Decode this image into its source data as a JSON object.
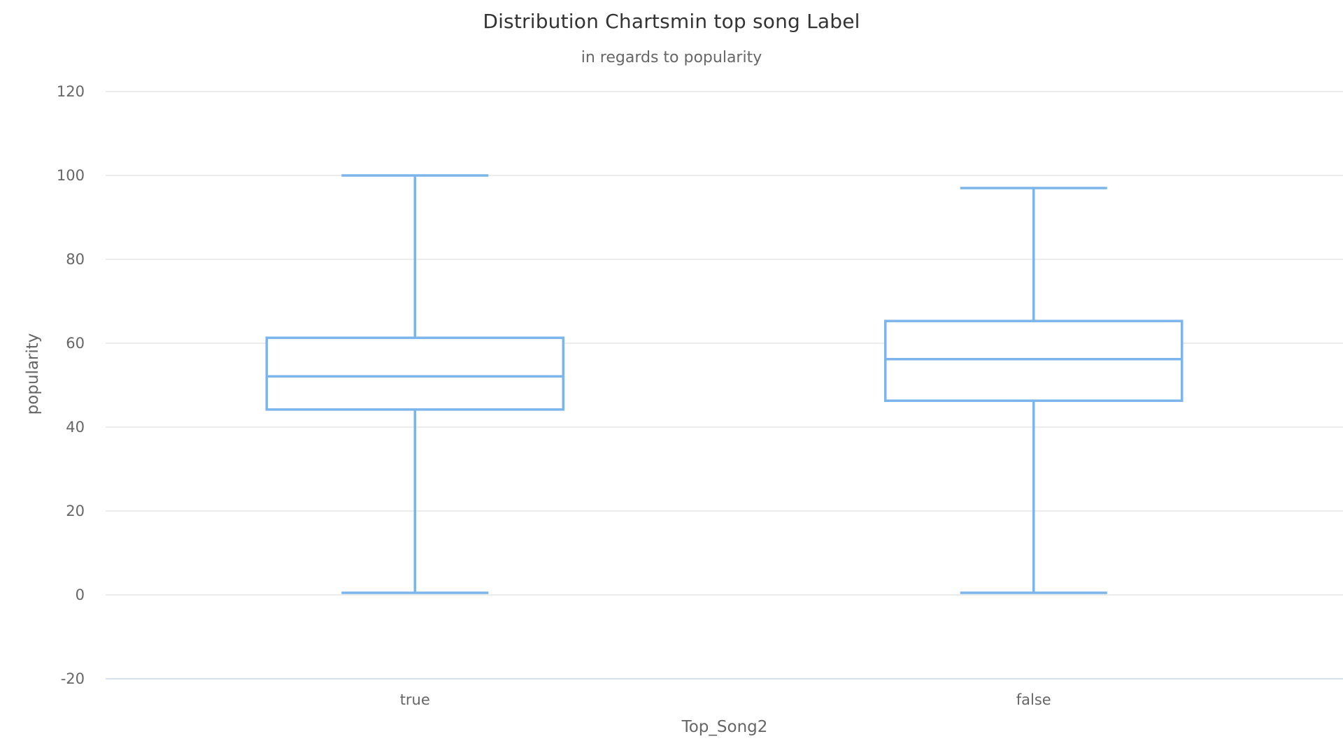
{
  "chart_data": {
    "type": "boxplot",
    "title": "Distribution Chartsmin top song Label",
    "subtitle": "in regards to popularity",
    "xlabel": "Top_Song2",
    "ylabel": "popularity",
    "ylim": [
      -20,
      120
    ],
    "yticks": [
      -20,
      0,
      20,
      40,
      60,
      80,
      100,
      120
    ],
    "grid": true,
    "categories": [
      "true",
      "false"
    ],
    "boxes": [
      {
        "category": "true",
        "low": 0.5,
        "q1": 44.2,
        "median": 52.1,
        "q3": 61.3,
        "high": 100
      },
      {
        "category": "false",
        "low": 0.5,
        "q1": 46.3,
        "median": 56.2,
        "q3": 65.3,
        "high": 97
      }
    ],
    "colors": {
      "box": "#7cb5ec",
      "grid": "#e6e6e6",
      "axis": "#ccd6eb",
      "text": "#666666",
      "title": "#333333"
    }
  }
}
